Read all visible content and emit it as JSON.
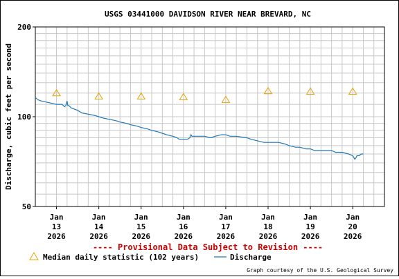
{
  "chart_data": {
    "type": "line",
    "title": "USGS 03441000 DAVIDSON RIVER NEAR BREVARD, NC",
    "ylabel": "Discharge, cubic feet per second",
    "xlabel": "",
    "y_scale": "log",
    "ylim": [
      50,
      200
    ],
    "y_ticks": [
      "50",
      "100",
      "200"
    ],
    "x_range_days": [
      12.5,
      20.75
    ],
    "x_ticks": [
      {
        "day": 13,
        "lines": [
          "Jan",
          "13",
          "2026"
        ]
      },
      {
        "day": 14,
        "lines": [
          "Jan",
          "14",
          "2026"
        ]
      },
      {
        "day": 15,
        "lines": [
          "Jan",
          "15",
          "2026"
        ]
      },
      {
        "day": 16,
        "lines": [
          "Jan",
          "16",
          "2026"
        ]
      },
      {
        "day": 17,
        "lines": [
          "Jan",
          "17",
          "2026"
        ]
      },
      {
        "day": 18,
        "lines": [
          "Jan",
          "18",
          "2026"
        ]
      },
      {
        "day": 19,
        "lines": [
          "Jan",
          "19",
          "2026"
        ]
      },
      {
        "day": 20,
        "lines": [
          "Jan",
          "20",
          "2026"
        ]
      }
    ],
    "grid": true,
    "series": [
      {
        "name": "Discharge",
        "style": "line",
        "color": "#1f77b4",
        "x": [
          12.5,
          12.56,
          12.63,
          12.75,
          12.88,
          13.0,
          13.13,
          13.19,
          13.22,
          13.25,
          13.27,
          13.29,
          13.35,
          13.5,
          13.6,
          13.75,
          13.9,
          14.0,
          14.1,
          14.25,
          14.4,
          14.5,
          14.65,
          14.75,
          14.9,
          15.0,
          15.15,
          15.25,
          15.4,
          15.5,
          15.6,
          15.75,
          15.85,
          15.9,
          16.0,
          16.1,
          16.15,
          16.18,
          16.2,
          16.25,
          16.5,
          16.65,
          16.75,
          16.9,
          17.0,
          17.1,
          17.25,
          17.5,
          17.6,
          17.75,
          17.9,
          18.0,
          18.25,
          18.4,
          18.5,
          18.65,
          18.75,
          18.9,
          19.0,
          19.1,
          19.25,
          19.4,
          19.5,
          19.6,
          19.75,
          19.9,
          20.0,
          20.05,
          20.08,
          20.1,
          20.15,
          20.2,
          20.25
        ],
        "values": [
          116,
          114,
          113,
          112,
          111,
          110,
          110,
          108,
          109,
          113,
          109,
          109,
          107,
          105,
          103,
          102,
          101,
          100,
          99,
          98,
          97,
          96,
          95,
          94,
          93,
          92,
          91,
          90,
          89,
          88,
          87,
          86,
          85,
          84,
          84,
          84,
          85,
          87,
          86,
          86,
          86,
          85,
          86,
          87,
          87,
          86,
          86,
          85,
          84,
          83,
          82,
          82,
          82,
          81,
          80,
          79,
          79,
          78,
          78,
          77,
          77,
          77,
          77,
          76,
          76,
          75,
          74,
          72,
          73,
          74,
          74,
          75,
          75
        ]
      },
      {
        "name": "Median daily statistic (102 years)",
        "style": "marker",
        "marker": "triangle",
        "color": "#e8a000",
        "x": [
          13,
          14,
          15,
          16,
          17,
          18,
          19,
          20
        ],
        "values": [
          120,
          117,
          117,
          116.5,
          114,
          122,
          121.5,
          121.5
        ]
      }
    ],
    "provisional_note": "---- Provisional Data Subject to Revision ----",
    "credit": "Graph courtesy of the U.S. Geological Survey"
  }
}
